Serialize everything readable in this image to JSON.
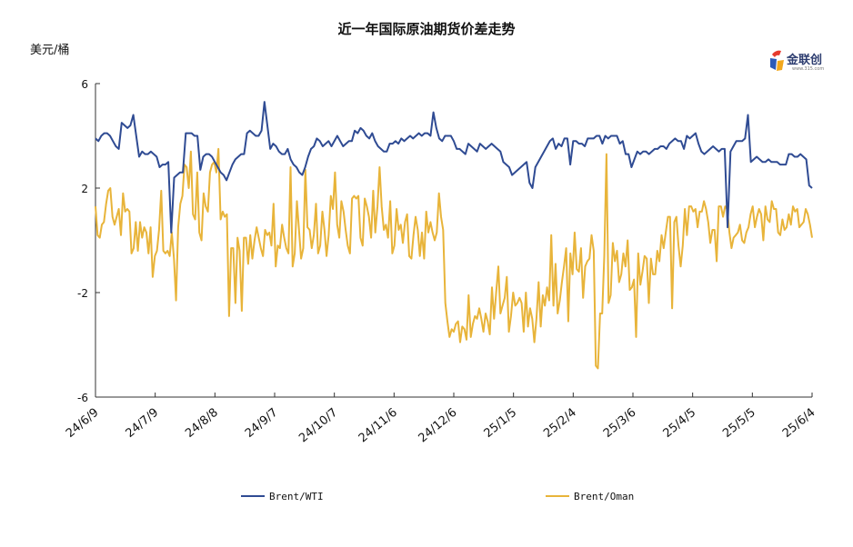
{
  "chart_data": {
    "type": "line",
    "title": "近一年国际原油期货价差走势",
    "ylabel": "美元/桶",
    "ylim": [
      -6,
      6
    ],
    "yticks": [
      6,
      2,
      -2,
      -6
    ],
    "xtick_labels": [
      "24/6/9",
      "24/7/9",
      "24/8/8",
      "24/9/7",
      "24/10/7",
      "24/11/6",
      "24/12/6",
      "25/1/5",
      "25/2/4",
      "25/3/6",
      "25/4/5",
      "25/5/5",
      "25/6/4"
    ],
    "legend_position": "bottom",
    "grid": false,
    "series": [
      {
        "name": "Brent/WTI",
        "color": "#2f4b93",
        "values": [
          3.9,
          3.8,
          4.0,
          4.1,
          4.1,
          4.0,
          3.8,
          3.6,
          3.5,
          4.5,
          4.4,
          4.3,
          4.4,
          4.8,
          4.0,
          3.2,
          3.4,
          3.3,
          3.3,
          3.4,
          3.3,
          3.2,
          2.8,
          2.9,
          2.9,
          3.0,
          0.3,
          2.4,
          2.5,
          2.6,
          2.6,
          4.1,
          4.1,
          4.1,
          4.0,
          4.0,
          2.7,
          3.2,
          3.3,
          3.3,
          3.2,
          3.0,
          2.8,
          2.6,
          2.5,
          2.3,
          2.6,
          2.9,
          3.1,
          3.2,
          3.3,
          3.3,
          4.1,
          4.2,
          4.1,
          4.0,
          4.0,
          4.2,
          5.3,
          4.4,
          3.5,
          3.7,
          3.6,
          3.4,
          3.3,
          3.3,
          3.5,
          3.1,
          2.9,
          2.8,
          2.6,
          2.5,
          2.8,
          3.2,
          3.5,
          3.6,
          3.9,
          3.8,
          3.6,
          3.7,
          3.8,
          3.6,
          3.8,
          4.0,
          3.8,
          3.6,
          3.7,
          3.8,
          3.8,
          4.2,
          4.1,
          4.3,
          4.2,
          4.0,
          3.9,
          4.1,
          3.8,
          3.6,
          3.5,
          3.4,
          3.4,
          3.7,
          3.7,
          3.8,
          3.7,
          3.9,
          3.8,
          3.9,
          4.0,
          3.9,
          4.0,
          4.1,
          4.0,
          4.1,
          4.1,
          4.0,
          4.9,
          4.3,
          3.9,
          3.8,
          4.0,
          4.0,
          4.0,
          3.8,
          3.5,
          3.5,
          3.4,
          3.3,
          3.7,
          3.6,
          3.5,
          3.4,
          3.7,
          3.6,
          3.5,
          3.6,
          3.7,
          3.6,
          3.5,
          3.4,
          3.0,
          2.9,
          2.8,
          2.5,
          2.6,
          2.7,
          2.8,
          2.9,
          3.0,
          2.2,
          2.0,
          2.8,
          3.0,
          3.2,
          3.4,
          3.6,
          3.8,
          3.9,
          3.5,
          3.7,
          3.6,
          3.9,
          3.9,
          2.9,
          3.8,
          3.8,
          3.7,
          3.7,
          3.6,
          3.9,
          3.9,
          3.9,
          4.0,
          4.0,
          3.7,
          4.0,
          3.9,
          4.0,
          4.0,
          4.0,
          3.7,
          3.8,
          3.3,
          3.3,
          2.8,
          3.1,
          3.4,
          3.3,
          3.4,
          3.4,
          3.3,
          3.4,
          3.5,
          3.5,
          3.6,
          3.6,
          3.5,
          3.7,
          3.8,
          3.9,
          3.8,
          3.8,
          3.5,
          4.0,
          3.9,
          4.0,
          4.1,
          3.7,
          3.4,
          3.3,
          3.4,
          3.5,
          3.6,
          3.5,
          3.4,
          3.5,
          3.5,
          0.5,
          3.4,
          3.6,
          3.8,
          3.8,
          3.8,
          3.9,
          4.8,
          3.0,
          3.1,
          3.2,
          3.1,
          3.0,
          3.0,
          3.1,
          3.0,
          3.0,
          3.0,
          2.9,
          2.9,
          2.9,
          3.3,
          3.3,
          3.2,
          3.2,
          3.3,
          3.2,
          3.1,
          2.1,
          2.0
        ]
      },
      {
        "name": "Brent/Oman",
        "color": "#e8b43a",
        "values": [
          1.3,
          0.2,
          0.1,
          0.6,
          0.7,
          1.4,
          1.9,
          2.0,
          0.9,
          0.6,
          0.9,
          1.2,
          0.2,
          1.8,
          1.1,
          1.2,
          1.1,
          -0.5,
          -0.3,
          0.7,
          -0.4,
          0.7,
          0.1,
          0.5,
          0.3,
          -0.5,
          0.5,
          -1.4,
          -0.6,
          -0.4,
          0.4,
          1.9,
          -0.4,
          -0.5,
          -0.4,
          -0.6,
          0.3,
          -0.7,
          -2.3,
          0.5,
          1.4,
          1.7,
          2.9,
          2.8,
          2.0,
          3.4,
          1.0,
          0.8,
          2.6,
          0.3,
          0.0,
          1.8,
          1.3,
          1.1,
          2.6,
          2.9,
          3.0,
          2.6,
          3.5,
          0.8,
          1.1,
          0.9,
          1.0,
          -2.9,
          -0.3,
          -0.3,
          -2.4,
          0.1,
          -0.4,
          -2.7,
          0.1,
          0.1,
          -0.9,
          0.2,
          -0.7,
          0.0,
          0.5,
          0.1,
          -0.3,
          -0.6,
          0.4,
          0.2,
          0.3,
          -0.2,
          1.4,
          -1.0,
          -0.2,
          -0.3,
          0.6,
          0.1,
          -0.3,
          -0.5,
          2.8,
          -1.0,
          -0.5,
          1.5,
          0.4,
          -0.7,
          -0.3,
          2.7,
          0.5,
          0.4,
          -0.3,
          0.2,
          1.4,
          -0.5,
          -0.2,
          1.1,
          0.4,
          -0.6,
          0.2,
          1.7,
          1.2,
          2.6,
          0.6,
          0.1,
          1.5,
          1.1,
          0.4,
          -0.2,
          -0.5,
          1.6,
          1.7,
          1.6,
          1.7,
          0.1,
          -0.2,
          1.6,
          1.3,
          0.9,
          0.1,
          1.9,
          0.3,
          1.3,
          2.8,
          1.3,
          0.4,
          0.6,
          0.1,
          1.5,
          -0.5,
          -0.2,
          1.2,
          0.4,
          0.6,
          -0.1,
          0.7,
          1.0,
          -0.6,
          -0.7,
          0.2,
          0.9,
          0.4,
          -0.6,
          0.3,
          -0.7,
          1.1,
          0.3,
          0.7,
          0.3,
          0.0,
          0.3,
          1.8,
          0.9,
          0.4,
          -2.4,
          -3.1,
          -3.7,
          -3.4,
          -3.5,
          -3.2,
          -3.1,
          -3.9,
          -3.3,
          -3.4,
          -3.8,
          -2.1,
          -3.7,
          -3.2,
          -2.9,
          -3.0,
          -2.6,
          -3.0,
          -3.5,
          -2.8,
          -3.1,
          -3.6,
          -1.8,
          -3.0,
          -2.0,
          -1.0,
          -2.8,
          -2.5,
          -2.2,
          -1.4,
          -3.5,
          -2.9,
          -2.0,
          -2.5,
          -2.4,
          -2.2,
          -2.4,
          -3.5,
          -2.0,
          -3.3,
          -2.6,
          -3.0,
          -3.9,
          -3.0,
          -1.6,
          -3.3,
          -2.1,
          -2.5,
          -1.8,
          -2.3,
          0.2,
          -2.5,
          -0.9,
          -2.8,
          -2.3,
          -1.6,
          -1.0,
          -0.3,
          -3.1,
          -0.5,
          -1.3,
          0.3,
          -1.1,
          -1.2,
          -0.3,
          -2.2,
          -1.0,
          -0.8,
          -0.7,
          0.2,
          -0.4,
          -4.8,
          -4.9,
          -2.8,
          -2.8,
          -0.6,
          3.3,
          -2.4,
          -2.1,
          -0.1,
          -0.8,
          -0.4,
          -1.6,
          -1.3,
          -0.5,
          -1.0,
          0.0,
          -1.9,
          -1.8,
          -1.5,
          -3.7,
          -0.5,
          -1.7,
          -1.2,
          -0.6,
          -0.7,
          -2.4,
          -0.7,
          -1.3,
          -1.3,
          -0.4,
          -0.8,
          0.2,
          -0.3,
          0.3,
          0.9,
          0.9,
          -2.6,
          0.7,
          0.9,
          -0.2,
          -1.0,
          -0.2,
          1.2,
          0.2,
          1.3,
          1.3,
          1.1,
          1.2,
          0.5,
          1.1,
          1.1,
          1.5,
          1.2,
          0.7,
          -0.1,
          0.4,
          0.4,
          -0.8,
          1.3,
          1.3,
          0.9,
          1.3,
          1.2,
          0.3,
          -0.3,
          0.1,
          0.2,
          0.3,
          0.6,
          0.0,
          -0.1,
          0.3,
          0.5,
          1.0,
          1.3,
          0.5,
          0.9,
          1.2,
          1.0,
          0.0,
          1.3,
          0.8,
          0.7,
          1.5,
          1.2,
          1.2,
          0.3,
          0.2,
          0.8,
          0.4,
          0.5,
          1.0,
          0.6,
          1.3,
          1.1,
          1.2,
          0.5,
          0.6,
          0.7,
          1.2,
          1.0,
          0.6,
          0.1
        ]
      }
    ]
  },
  "logo": {
    "name": "金联创",
    "tagline": "www.315.com",
    "colors": [
      "#e63b2e",
      "#2d5bb8",
      "#f2a81d"
    ]
  }
}
